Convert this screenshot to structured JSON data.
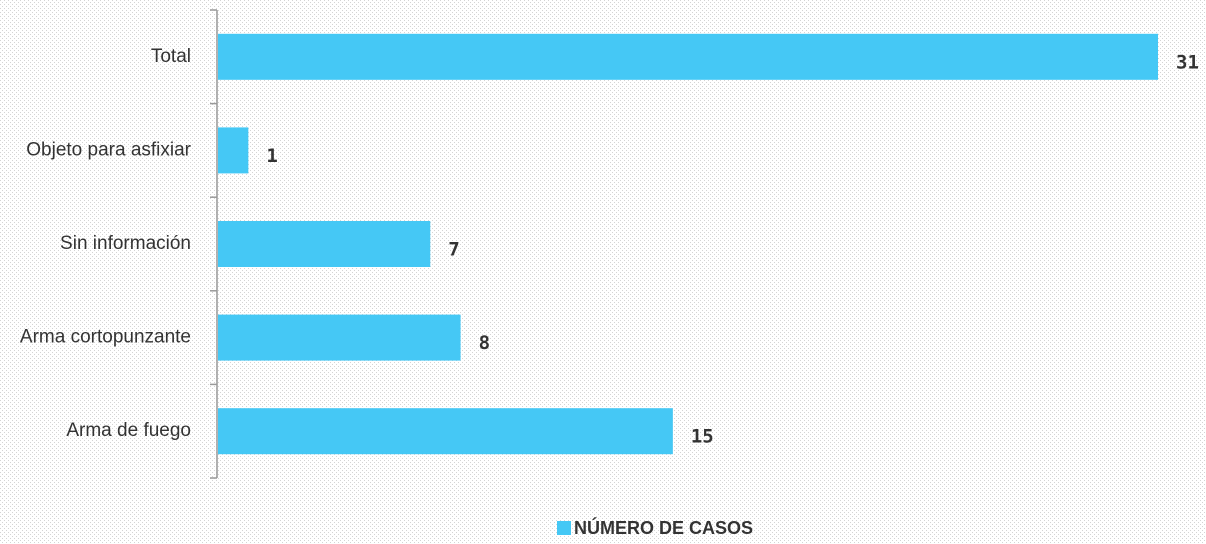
{
  "chart_data": {
    "type": "bar",
    "orientation": "horizontal",
    "categories": [
      "Total",
      "Objeto para asfixiar",
      "Sin información",
      "Arma cortopunzante",
      "Arma de fuego"
    ],
    "series": [
      {
        "name": "NÚMERO DE CASOS",
        "color": "#45c8f5",
        "values": [
          31,
          1,
          7,
          8,
          15
        ]
      }
    ],
    "xlim": [
      0,
      31
    ],
    "legend": "bottom"
  }
}
